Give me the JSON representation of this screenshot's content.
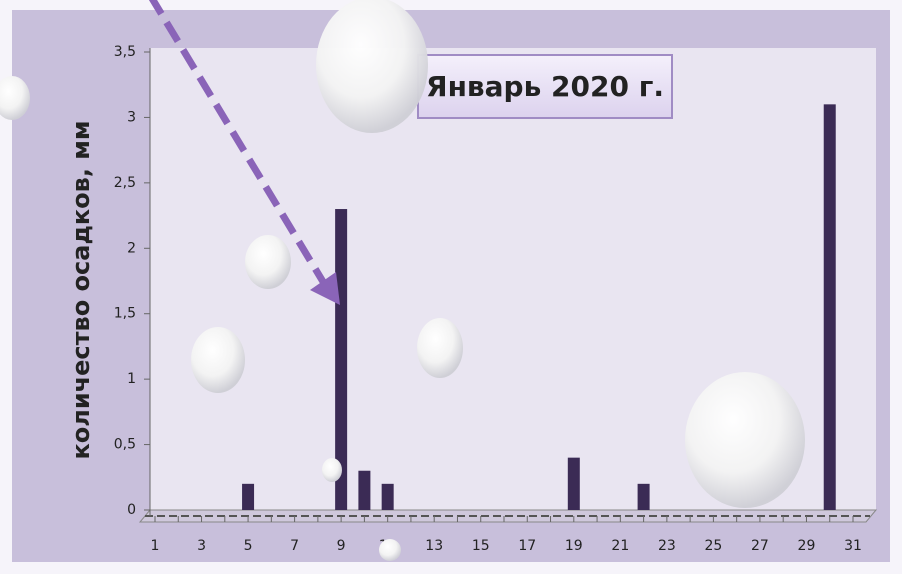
{
  "chart_data": {
    "type": "bar",
    "title": "Январь 2020 г.",
    "y_label": "количество осадков, мм",
    "categories": [
      "1",
      null,
      "3",
      null,
      "5",
      null,
      "7",
      null,
      "9",
      null,
      "11",
      null,
      "13",
      null,
      "15",
      null,
      "17",
      null,
      "19",
      null,
      "21",
      null,
      "23",
      null,
      "25",
      null,
      "27",
      null,
      "29",
      null,
      "31"
    ],
    "values": [
      0,
      0,
      0,
      0,
      0.2,
      0,
      0,
      0,
      2.3,
      0.3,
      0.2,
      0,
      0,
      0,
      0,
      0,
      0,
      0,
      0.4,
      0,
      0,
      0.2,
      0,
      0,
      0,
      0,
      0,
      0,
      0,
      3.1,
      0
    ],
    "color": "#3b2b55",
    "ylim": [
      0,
      3.5
    ],
    "yticks": [
      0,
      {
        "value": 0.5,
        "label": "0,5"
      },
      1,
      {
        "value": 1.5,
        "label": "1,5"
      },
      2,
      {
        "value": 2.5,
        "label": "2,5"
      },
      3,
      {
        "value": 3.5,
        "label": "3,5"
      }
    ],
    "grid": false
  }
}
